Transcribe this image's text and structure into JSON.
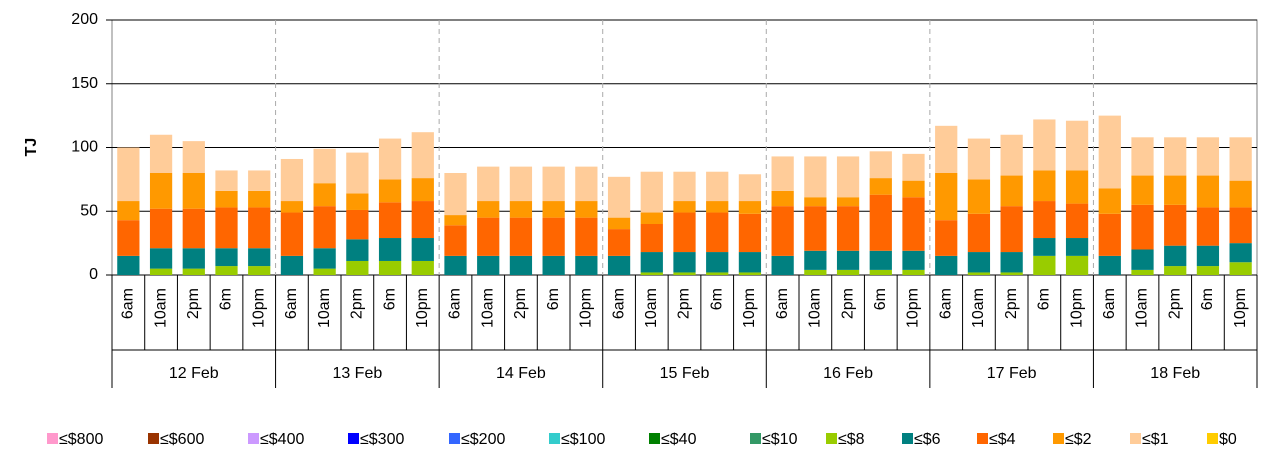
{
  "chart_data": {
    "type": "stacked_bar",
    "ylabel": "TJ",
    "categories": [
      "6am",
      "10am",
      "2pm",
      "6m",
      "10pm",
      "6am",
      "10am",
      "2pm",
      "6m",
      "10pm",
      "6am",
      "10am",
      "2pm",
      "6m",
      "10pm",
      "6am",
      "10am",
      "2pm",
      "6m",
      "10pm",
      "6am",
      "10am",
      "2pm",
      "6m",
      "10pm",
      "6am",
      "10am",
      "2pm",
      "6m",
      "10pm",
      "6am",
      "10am",
      "2pm",
      "6m",
      "10pm"
    ],
    "groups": [
      "12 Feb",
      "13 Feb",
      "14 Feb",
      "15 Feb",
      "16 Feb",
      "17 Feb",
      "18 Feb"
    ],
    "ylim": [
      0,
      200
    ],
    "yticks": [
      0,
      50,
      100,
      150,
      200
    ],
    "grid": true,
    "legend": "bottom",
    "series": [
      {
        "name": "≤$800",
        "color": "#ff99cc",
        "values": [
          0,
          0,
          0,
          0,
          0,
          0,
          0,
          0,
          0,
          0,
          0,
          0,
          0,
          0,
          0,
          0,
          0,
          0,
          0,
          0,
          0,
          0,
          0,
          0,
          0,
          0,
          0,
          0,
          0,
          0,
          0,
          0,
          0,
          0,
          0
        ]
      },
      {
        "name": "≤$600",
        "color": "#993300",
        "values": [
          0,
          0,
          0,
          0,
          0,
          0,
          0,
          0,
          0,
          0,
          0,
          0,
          0,
          0,
          0,
          0,
          0,
          0,
          0,
          0,
          0,
          0,
          0,
          0,
          0,
          0,
          0,
          0,
          0,
          0,
          0,
          0,
          0,
          0,
          0
        ]
      },
      {
        "name": "≤$400",
        "color": "#cc99ff",
        "values": [
          0,
          0,
          0,
          0,
          0,
          0,
          0,
          0,
          0,
          0,
          0,
          0,
          0,
          0,
          0,
          0,
          0,
          0,
          0,
          0,
          0,
          0,
          0,
          0,
          0,
          0,
          0,
          0,
          0,
          0,
          0,
          0,
          0,
          0,
          0
        ]
      },
      {
        "name": "≤$300",
        "color": "#0000ff",
        "values": [
          0,
          0,
          0,
          0,
          0,
          0,
          0,
          0,
          0,
          0,
          0,
          0,
          0,
          0,
          0,
          0,
          0,
          0,
          0,
          0,
          0,
          0,
          0,
          0,
          0,
          0,
          0,
          0,
          0,
          0,
          0,
          0,
          0,
          0,
          0
        ]
      },
      {
        "name": "≤$200",
        "color": "#3366ff",
        "values": [
          0,
          0,
          0,
          0,
          0,
          0,
          0,
          0,
          0,
          0,
          0,
          0,
          0,
          0,
          0,
          0,
          0,
          0,
          0,
          0,
          0,
          0,
          0,
          0,
          0,
          0,
          0,
          0,
          0,
          0,
          0,
          0,
          0,
          0,
          0
        ]
      },
      {
        "name": "≤$100",
        "color": "#33cccc",
        "values": [
          0,
          0,
          0,
          0,
          0,
          0,
          0,
          0,
          0,
          0,
          0,
          0,
          0,
          0,
          0,
          0,
          0,
          0,
          0,
          0,
          0,
          0,
          0,
          0,
          0,
          0,
          0,
          0,
          0,
          0,
          0,
          0,
          0,
          0,
          0
        ]
      },
      {
        "name": "≤$40",
        "color": "#008000",
        "values": [
          0,
          0,
          0,
          0,
          0,
          0,
          0,
          0,
          0,
          0,
          0,
          0,
          0,
          0,
          0,
          0,
          0,
          0,
          0,
          0,
          0,
          0,
          0,
          0,
          0,
          0,
          0,
          0,
          0,
          0,
          0,
          0,
          0,
          0,
          0
        ]
      },
      {
        "name": "≤$10",
        "color": "#339966",
        "values": [
          0,
          0,
          0,
          0,
          0,
          0,
          0,
          0,
          0,
          0,
          0,
          0,
          0,
          0,
          0,
          0,
          0,
          0,
          0,
          0,
          0,
          0,
          0,
          0,
          0,
          0,
          0,
          0,
          0,
          0,
          0,
          0,
          0,
          0,
          0
        ]
      },
      {
        "name": "≤$8",
        "color": "#99cc00",
        "values": [
          0,
          5,
          5,
          7,
          7,
          0,
          5,
          11,
          11,
          11,
          0,
          0,
          0,
          0,
          0,
          0,
          2,
          2,
          2,
          2,
          0,
          4,
          4,
          4,
          4,
          0,
          2,
          2,
          15,
          15,
          0,
          4,
          7,
          7,
          10
        ]
      },
      {
        "name": "≤$6",
        "color": "#008080",
        "values": [
          15,
          16,
          16,
          14,
          14,
          15,
          16,
          17,
          18,
          18,
          15,
          15,
          15,
          15,
          15,
          15,
          16,
          16,
          16,
          16,
          15,
          15,
          15,
          15,
          15,
          15,
          16,
          16,
          14,
          14,
          15,
          16,
          16,
          16,
          15
        ]
      },
      {
        "name": "≤$4",
        "color": "#ff6600",
        "values": [
          28,
          31,
          31,
          32,
          32,
          34,
          33,
          23,
          28,
          29,
          24,
          30,
          30,
          30,
          30,
          21,
          22,
          31,
          31,
          30,
          39,
          35,
          35,
          44,
          42,
          28,
          30,
          36,
          29,
          27,
          33,
          35,
          32,
          30,
          28
        ]
      },
      {
        "name": "≤$2",
        "color": "#ff9900",
        "values": [
          15,
          28,
          28,
          13,
          13,
          9,
          18,
          13,
          18,
          18,
          8,
          13,
          13,
          13,
          13,
          9,
          9,
          9,
          9,
          10,
          12,
          7,
          7,
          13,
          13,
          37,
          27,
          24,
          24,
          26,
          20,
          23,
          23,
          25,
          21
        ]
      },
      {
        "name": "≤$1",
        "color": "#ffcc99",
        "values": [
          42,
          30,
          25,
          16,
          16,
          33,
          27,
          32,
          32,
          36,
          33,
          27,
          27,
          27,
          27,
          32,
          32,
          23,
          23,
          21,
          27,
          32,
          32,
          21,
          21,
          37,
          32,
          32,
          40,
          39,
          57,
          30,
          30,
          30,
          34
        ]
      },
      {
        "name": "$0",
        "color": "#ffcc00",
        "values": [
          0,
          0,
          0,
          0,
          0,
          0,
          0,
          0,
          0,
          0,
          0,
          0,
          0,
          0,
          0,
          0,
          0,
          0,
          0,
          0,
          0,
          0,
          0,
          0,
          0,
          0,
          0,
          0,
          0,
          0,
          0,
          0,
          0,
          0,
          0
        ]
      }
    ]
  }
}
